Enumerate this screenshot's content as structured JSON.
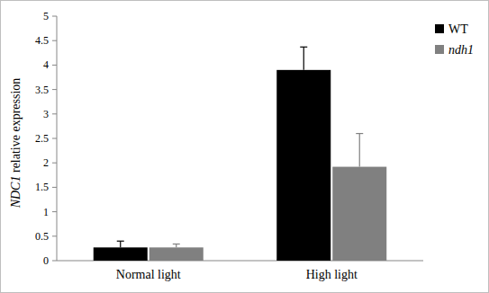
{
  "chart_data": {
    "type": "bar",
    "y_label": "NDC1 relative expression",
    "categories": [
      "Normal light",
      "High light"
    ],
    "series": [
      {
        "name": "WT",
        "color": "#000000",
        "values": [
          0.27,
          3.9
        ],
        "error": [
          0.13,
          0.47
        ]
      },
      {
        "name": "ndh1",
        "color": "#808080",
        "values": [
          0.27,
          1.92
        ],
        "error": [
          0.07,
          0.68
        ]
      }
    ],
    "ylim": [
      0,
      5
    ],
    "yticks": [
      0,
      0.5,
      1,
      1.5,
      2,
      2.5,
      3,
      3.5,
      4,
      4.5,
      5
    ],
    "grid": false,
    "legend": "top-right"
  }
}
